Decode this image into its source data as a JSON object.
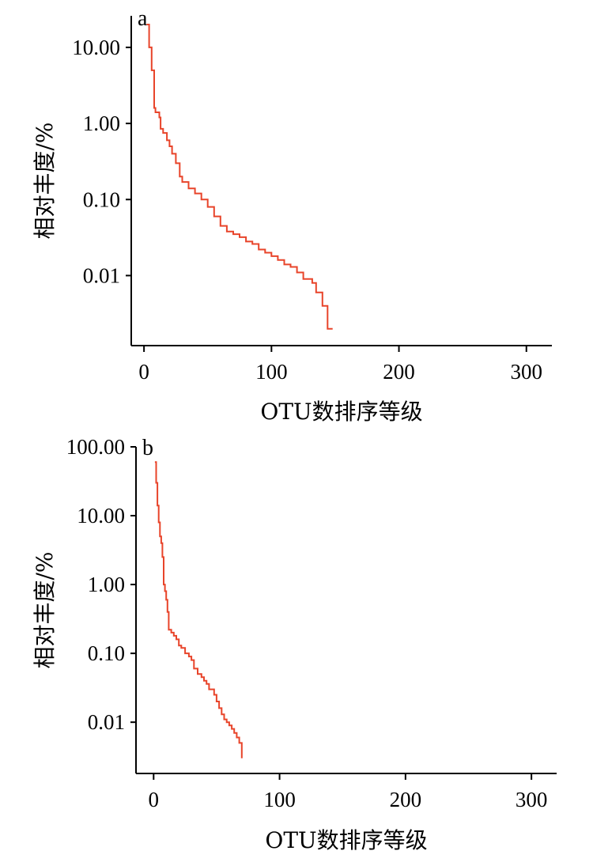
{
  "chart_data": [
    {
      "type": "line",
      "panel_label": "a",
      "xlabel": "OTU数排序等级",
      "ylabel": "相对丰度/%",
      "y_scale": "log",
      "xlim": [
        -10,
        320
      ],
      "ylim": [
        0.0012,
        26
      ],
      "x_ticks": [
        0,
        100,
        200,
        300
      ],
      "x_tick_labels": [
        "0",
        "100",
        "200",
        "300"
      ],
      "y_ticks": [
        0.01,
        0.1,
        1,
        10
      ],
      "y_tick_labels": [
        "0.01",
        "0.10",
        "1.00",
        "10.00"
      ],
      "grid": false,
      "series": [
        {
          "color": "#e8442a",
          "x": [
            2,
            4,
            6,
            8,
            9,
            12,
            13,
            15,
            18,
            20,
            22,
            25,
            28,
            30,
            35,
            40,
            45,
            50,
            55,
            60,
            65,
            70,
            75,
            80,
            85,
            90,
            95,
            100,
            105,
            110,
            115,
            120,
            125,
            128,
            132,
            135,
            138,
            140,
            142,
            144,
            148
          ],
          "y": [
            20,
            10,
            5,
            1.6,
            1.4,
            1.2,
            0.85,
            0.75,
            0.6,
            0.5,
            0.4,
            0.3,
            0.2,
            0.17,
            0.14,
            0.12,
            0.1,
            0.08,
            0.06,
            0.045,
            0.038,
            0.035,
            0.032,
            0.028,
            0.026,
            0.022,
            0.02,
            0.018,
            0.016,
            0.014,
            0.013,
            0.011,
            0.009,
            0.009,
            0.008,
            0.006,
            0.006,
            0.004,
            0.004,
            0.002,
            0.002
          ]
        }
      ]
    },
    {
      "type": "line",
      "panel_label": "b",
      "xlabel": "OTU数排序等级",
      "ylabel": "相对丰度/%",
      "y_scale": "log",
      "xlim": [
        -14,
        320
      ],
      "ylim": [
        0.0018,
        100
      ],
      "x_ticks": [
        0,
        100,
        200,
        300
      ],
      "x_tick_labels": [
        "0",
        "100",
        "200",
        "300"
      ],
      "y_ticks": [
        0.01,
        0.1,
        1,
        10,
        100
      ],
      "y_tick_labels": [
        "0.01",
        "0.10",
        "1.00",
        "10.00",
        "100.00"
      ],
      "grid": false,
      "series": [
        {
          "color": "#e8442a",
          "x": [
            1,
            2,
            3,
            4,
            5,
            6,
            7,
            8,
            9,
            10,
            11,
            12,
            14,
            16,
            18,
            20,
            22,
            25,
            28,
            30,
            32,
            35,
            38,
            40,
            42,
            44,
            46,
            48,
            50,
            52,
            54,
            56,
            58,
            60,
            62,
            64,
            66,
            68,
            70
          ],
          "y": [
            60,
            30,
            14,
            8,
            5,
            4,
            2.5,
            1,
            0.8,
            0.6,
            0.4,
            0.22,
            0.2,
            0.18,
            0.16,
            0.13,
            0.12,
            0.1,
            0.09,
            0.08,
            0.06,
            0.05,
            0.045,
            0.04,
            0.036,
            0.03,
            0.03,
            0.025,
            0.02,
            0.016,
            0.013,
            0.011,
            0.01,
            0.009,
            0.008,
            0.007,
            0.006,
            0.005,
            0.003
          ]
        }
      ]
    }
  ]
}
